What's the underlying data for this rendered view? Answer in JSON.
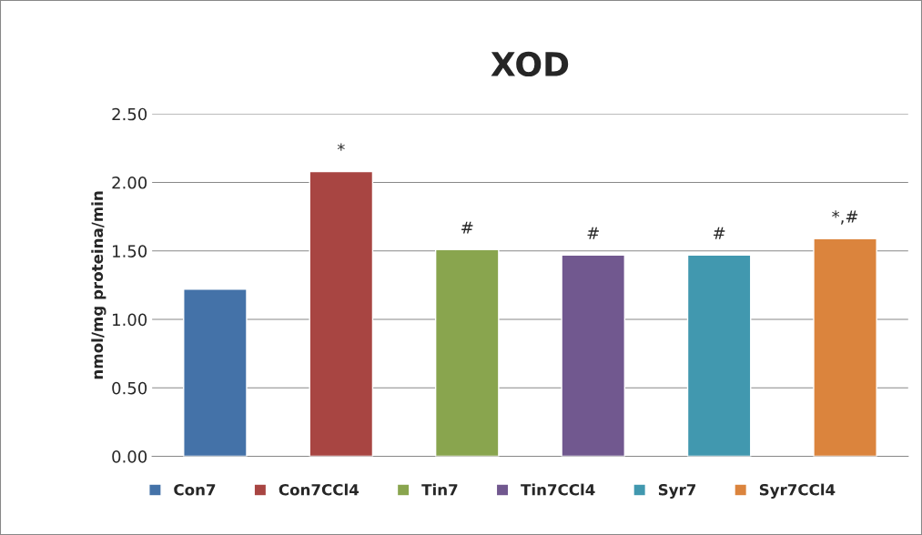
{
  "chart_data": {
    "type": "bar",
    "title": "XOD",
    "ylabel": "nmol/mg proteina/min",
    "categories": [
      null,
      null,
      null,
      null,
      null,
      null
    ],
    "series": [
      {
        "name": "Con7",
        "color": "#4472a8",
        "values": [
          1.22,
          null,
          null,
          null,
          null,
          null
        ],
        "value_labels": [
          null,
          null,
          null,
          null,
          null,
          null
        ]
      },
      {
        "name": "Con7CCl4",
        "color": "#a84542",
        "values": [
          null,
          2.08,
          null,
          null,
          null,
          null
        ],
        "value_labels": [
          null,
          "*",
          null,
          null,
          null,
          null
        ]
      },
      {
        "name": "Tin7",
        "color": "#89a54e",
        "values": [
          null,
          null,
          1.51,
          null,
          null,
          null
        ],
        "value_labels": [
          null,
          null,
          "#",
          null,
          null,
          null
        ]
      },
      {
        "name": "Tin7CCl4",
        "color": "#71588f",
        "values": [
          null,
          null,
          null,
          1.47,
          null,
          null
        ],
        "value_labels": [
          null,
          null,
          null,
          "#",
          null,
          null
        ]
      },
      {
        "name": "Syr7",
        "color": "#4198af",
        "values": [
          null,
          null,
          null,
          null,
          1.47,
          null
        ],
        "value_labels": [
          null,
          null,
          null,
          null,
          "#",
          null
        ]
      },
      {
        "name": "Syr7CCl4",
        "color": "#db843d",
        "values": [
          null,
          null,
          null,
          null,
          null,
          1.59
        ],
        "value_labels": [
          null,
          null,
          null,
          null,
          null,
          "*,#"
        ]
      }
    ],
    "ylim": [
      0,
      2.5
    ],
    "yticks": [
      {
        "value": 0,
        "label": "0.00"
      },
      {
        "value": 0.5,
        "label": "0.50"
      },
      {
        "value": 1,
        "label": "1.00"
      },
      {
        "value": 1.5,
        "label": "1.50"
      },
      {
        "value": 2,
        "label": "2.00"
      },
      {
        "value": 2.5,
        "label": "2.50"
      }
    ],
    "grid": "y",
    "legend": "bottom",
    "tick_labels": "y"
  }
}
